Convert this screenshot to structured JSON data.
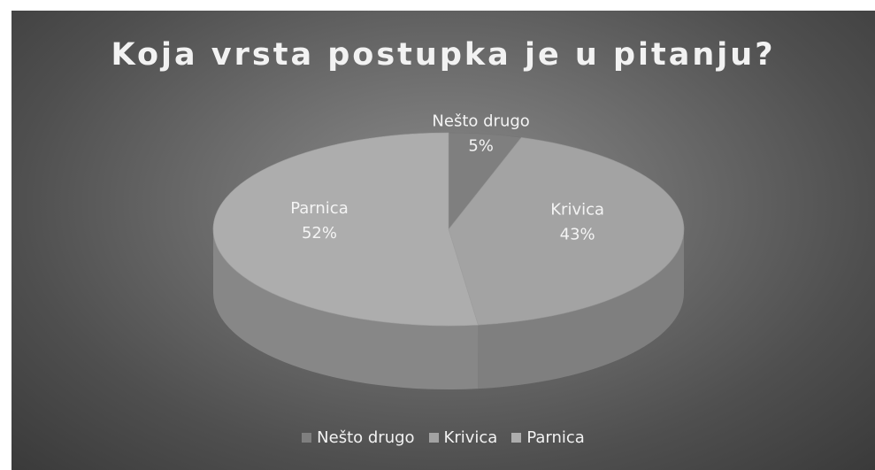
{
  "chart_data": {
    "type": "pie",
    "title": "Koja vrsta postupka je u pitanju?",
    "style": "3d",
    "legend_position": "bottom",
    "slices": [
      {
        "label": "Nešto drugo",
        "value": 5,
        "display": "5%",
        "color": "#7f7f7f"
      },
      {
        "label": "Krivica",
        "value": 43,
        "display": "43%",
        "color": "#a3a3a3"
      },
      {
        "label": "Parnica",
        "value": 52,
        "display": "52%",
        "color": "#adadad"
      }
    ]
  }
}
